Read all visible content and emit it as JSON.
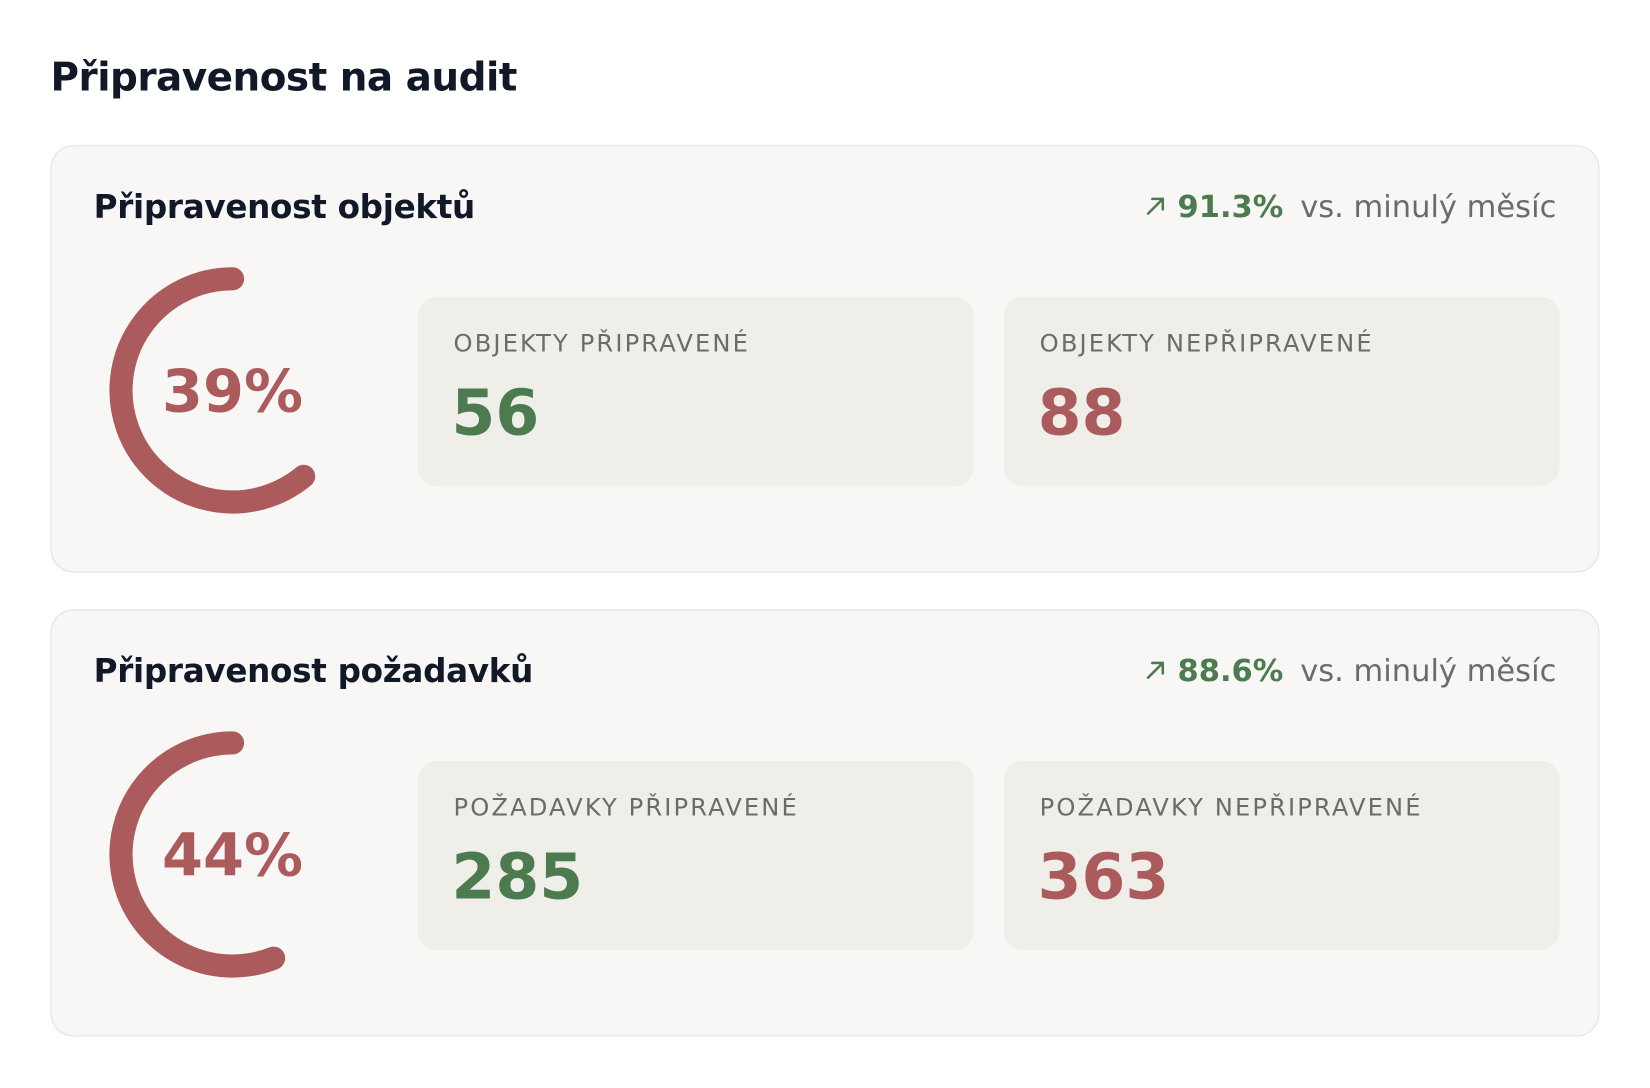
{
  "header": {
    "title": "Připravenost na audit"
  },
  "cards": [
    {
      "title": "Připravenost objektů",
      "change": {
        "value": 91.3,
        "value_label": "91.3%",
        "label": "vs. minulý měsíc"
      },
      "gauge": {
        "type": "gauge",
        "value": 39,
        "value_label": "39%",
        "max": 100,
        "color": "#ab5b5c"
      },
      "stats": [
        {
          "label": "OBJEKTY PŘIPRAVENÉ",
          "value": 56,
          "color": "#4b7b4f"
        },
        {
          "label": "OBJEKTY NEPŘIPRAVENÉ",
          "value": 88,
          "color": "#ab5b5c"
        }
      ]
    },
    {
      "title": "Připravenost požadavků",
      "change": {
        "value": 88.6,
        "value_label": "88.6%",
        "label": "vs. minulý měsíc"
      },
      "gauge": {
        "type": "gauge",
        "value": 44,
        "value_label": "44%",
        "max": 100,
        "color": "#ab5b5c"
      },
      "stats": [
        {
          "label": "POŽADAVKY PŘIPRAVENÉ",
          "value": 285,
          "color": "#4b7b4f"
        },
        {
          "label": "POŽADAVKY NEPŘIPRAVENÉ",
          "value": 363,
          "color": "#ab5b5c"
        }
      ]
    }
  ]
}
